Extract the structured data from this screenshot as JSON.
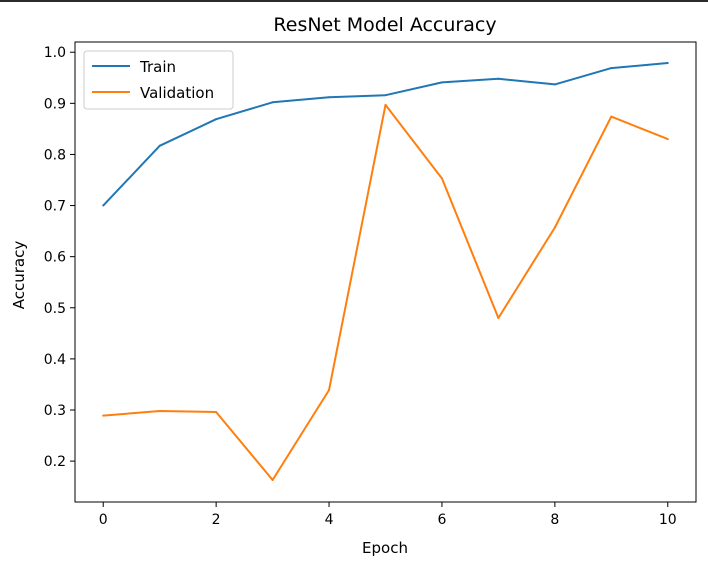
{
  "chart_data": {
    "type": "line",
    "title": "ResNet Model Accuracy",
    "xlabel": "Epoch",
    "ylabel": "Accuracy",
    "x": [
      0,
      1,
      2,
      3,
      4,
      5,
      6,
      7,
      8,
      9,
      10
    ],
    "xlim": [
      -0.5,
      10.5
    ],
    "ylim": [
      0.12,
      1.02
    ],
    "xticks": [
      0,
      2,
      4,
      6,
      8,
      10
    ],
    "yticks": [
      0.2,
      0.3,
      0.4,
      0.5,
      0.6,
      0.7,
      0.8,
      0.9,
      1.0
    ],
    "xtick_labels": [
      "0",
      "2",
      "4",
      "6",
      "8",
      "10"
    ],
    "ytick_labels": [
      "0.2",
      "0.3",
      "0.4",
      "0.5",
      "0.6",
      "0.7",
      "0.8",
      "0.9",
      "1.0"
    ],
    "grid": false,
    "legend_position": "upper-left",
    "series": [
      {
        "name": "Train",
        "color": "#1f77b4",
        "values": [
          0.7,
          0.817,
          0.869,
          0.902,
          0.912,
          0.916,
          0.941,
          0.948,
          0.937,
          0.969,
          0.979
        ]
      },
      {
        "name": "Validation",
        "color": "#ff7f0e",
        "values": [
          0.289,
          0.298,
          0.296,
          0.163,
          0.339,
          0.897,
          0.753,
          0.48,
          0.657,
          0.874,
          0.83
        ]
      }
    ]
  }
}
